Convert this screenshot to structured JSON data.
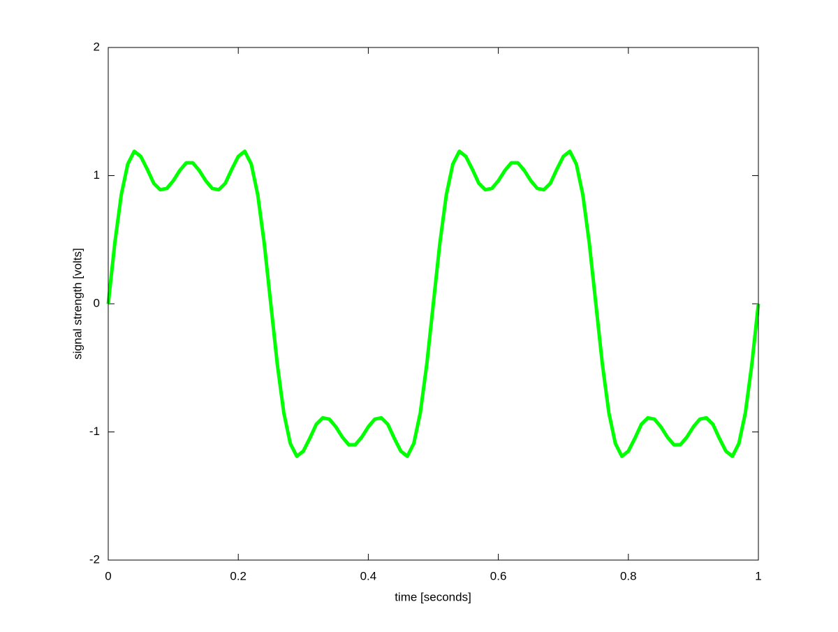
{
  "chart_data": {
    "type": "line",
    "xlabel": "time [seconds]",
    "ylabel": "signal strength [volts]",
    "x": [
      0,
      0.01,
      0.02,
      0.03,
      0.04,
      0.05,
      0.06,
      0.07,
      0.08,
      0.09,
      0.1,
      0.11,
      0.12,
      0.13,
      0.14,
      0.15,
      0.16,
      0.17,
      0.18,
      0.19,
      0.2,
      0.21,
      0.22,
      0.23,
      0.24,
      0.25,
      0.26,
      0.27,
      0.28,
      0.29,
      0.3,
      0.31,
      0.32,
      0.33,
      0.34,
      0.35,
      0.36,
      0.37,
      0.38,
      0.39,
      0.4,
      0.41,
      0.42,
      0.43,
      0.44,
      0.45,
      0.46,
      0.47,
      0.48,
      0.49,
      0.5,
      0.51,
      0.52,
      0.53,
      0.54,
      0.55,
      0.56,
      0.57,
      0.58,
      0.59,
      0.6,
      0.61,
      0.62,
      0.63,
      0.64,
      0.65,
      0.66,
      0.67,
      0.68,
      0.69,
      0.7,
      0.71,
      0.72,
      0.73,
      0.74,
      0.75,
      0.76,
      0.77,
      0.78,
      0.79,
      0.8,
      0.81,
      0.82,
      0.83,
      0.84,
      0.85,
      0.86,
      0.87,
      0.88,
      0.89,
      0.9,
      0.91,
      0.92,
      0.93,
      0.94,
      0.95,
      0.96,
      0.97,
      0.98,
      0.99,
      1
    ],
    "series": [
      {
        "color": "#00ff00",
        "values": [
          0,
          0.47,
          0.85,
          1.09,
          1.19,
          1.15,
          1.05,
          0.94,
          0.89,
          0.9,
          0.96,
          1.04,
          1.1,
          1.1,
          1.04,
          0.96,
          0.9,
          0.89,
          0.94,
          1.05,
          1.15,
          1.19,
          1.09,
          0.85,
          0.47,
          0,
          -0.47,
          -0.85,
          -1.09,
          -1.19,
          -1.15,
          -1.05,
          -0.94,
          -0.89,
          -0.9,
          -0.96,
          -1.04,
          -1.1,
          -1.1,
          -1.04,
          -0.96,
          -0.9,
          -0.89,
          -0.94,
          -1.05,
          -1.15,
          -1.19,
          -1.09,
          -0.85,
          -0.47,
          0,
          0.47,
          0.85,
          1.09,
          1.19,
          1.15,
          1.05,
          0.94,
          0.89,
          0.9,
          0.96,
          1.04,
          1.1,
          1.1,
          1.04,
          0.96,
          0.9,
          0.89,
          0.94,
          1.05,
          1.15,
          1.19,
          1.09,
          0.85,
          0.47,
          0,
          -0.47,
          -0.85,
          -1.09,
          -1.19,
          -1.15,
          -1.05,
          -0.94,
          -0.89,
          -0.9,
          -0.96,
          -1.04,
          -1.1,
          -1.1,
          -1.04,
          -0.96,
          -0.9,
          -0.89,
          -0.94,
          -1.05,
          -1.15,
          -1.19,
          -1.09,
          -0.85,
          -0.47,
          0
        ]
      }
    ],
    "xlim": [
      0,
      1
    ],
    "xticks": [
      0,
      0.2,
      0.4,
      0.6,
      0.8,
      1
    ],
    "ylim": [
      -2,
      2
    ],
    "yticks": [
      -2,
      -1,
      0,
      1,
      2
    ],
    "grid": false
  }
}
